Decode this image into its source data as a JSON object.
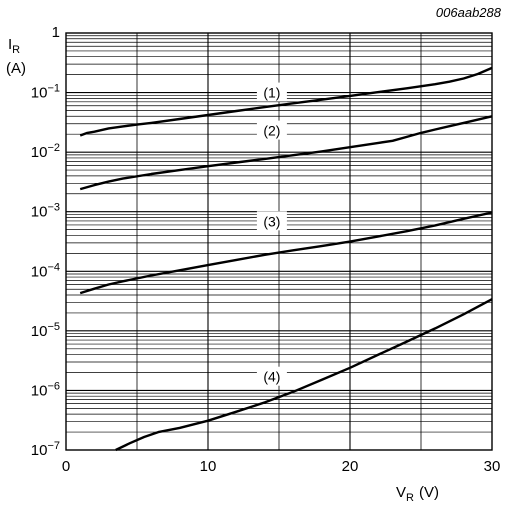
{
  "chart_data": {
    "type": "line",
    "figure_code": "006aab288",
    "ylabel": {
      "main": "I",
      "sub": "R",
      "unit": "(A)"
    },
    "xlabel": {
      "main": "V",
      "sub": "R",
      "unit": "(V)"
    },
    "y_scale": "log",
    "xlim": [
      0,
      30
    ],
    "ylim": [
      1e-07,
      1
    ],
    "x_ticks": [
      {
        "value": 0,
        "label": "0"
      },
      {
        "value": 10,
        "label": "10"
      },
      {
        "value": 20,
        "label": "20"
      },
      {
        "value": 30,
        "label": "30"
      }
    ],
    "y_ticks": [
      {
        "value": 1,
        "base": "1",
        "exp": ""
      },
      {
        "value": 0.1,
        "base": "10",
        "exp": "−1"
      },
      {
        "value": 0.01,
        "base": "10",
        "exp": "−2"
      },
      {
        "value": 0.001,
        "base": "10",
        "exp": "−3"
      },
      {
        "value": 0.0001,
        "base": "10",
        "exp": "−4"
      },
      {
        "value": 1e-05,
        "base": "10",
        "exp": "−5"
      },
      {
        "value": 1e-06,
        "base": "10",
        "exp": "−6"
      },
      {
        "value": 1e-07,
        "base": "10",
        "exp": "−7"
      }
    ],
    "grid": true,
    "series": [
      {
        "label": "(1)",
        "label_at": {
          "x": 14.5,
          "y": 0.1
        },
        "points": [
          [
            1,
            0.019
          ],
          [
            1.5,
            0.021
          ],
          [
            2,
            0.022
          ],
          [
            3,
            0.025
          ],
          [
            4,
            0.027
          ],
          [
            5,
            0.029
          ],
          [
            6,
            0.031
          ],
          [
            8,
            0.036
          ],
          [
            10,
            0.042
          ],
          [
            12,
            0.049
          ],
          [
            14,
            0.057
          ],
          [
            16,
            0.066
          ],
          [
            18,
            0.076
          ],
          [
            20,
            0.088
          ],
          [
            22,
            0.102
          ],
          [
            24,
            0.118
          ],
          [
            26,
            0.138
          ],
          [
            27,
            0.152
          ],
          [
            28,
            0.172
          ],
          [
            29,
            0.205
          ],
          [
            30,
            0.26
          ]
        ]
      },
      {
        "label": "(2)",
        "label_at": {
          "x": 14.5,
          "y": 0.023
        },
        "points": [
          [
            1,
            0.0024
          ],
          [
            2,
            0.0028
          ],
          [
            3,
            0.0032
          ],
          [
            4,
            0.0036
          ],
          [
            6,
            0.0043
          ],
          [
            8,
            0.005
          ],
          [
            10,
            0.0058
          ],
          [
            12,
            0.0067
          ],
          [
            14,
            0.0077
          ],
          [
            16,
            0.0089
          ],
          [
            18,
            0.0103
          ],
          [
            20,
            0.0121
          ],
          [
            22,
            0.0143
          ],
          [
            23,
            0.0155
          ],
          [
            24,
            0.018
          ],
          [
            25,
            0.021
          ],
          [
            26,
            0.024
          ],
          [
            28,
            0.031
          ],
          [
            30,
            0.04
          ]
        ]
      },
      {
        "label": "(3)",
        "label_at": {
          "x": 14.5,
          "y": 0.00069
        },
        "points": [
          [
            1,
            4.3e-05
          ],
          [
            2,
            5.1e-05
          ],
          [
            3,
            6e-05
          ],
          [
            4,
            6.8e-05
          ],
          [
            6,
            8.5e-05
          ],
          [
            8,
            0.000104
          ],
          [
            10,
            0.000127
          ],
          [
            12,
            0.000155
          ],
          [
            14,
            0.000189
          ],
          [
            16,
            0.000225
          ],
          [
            18,
            0.000265
          ],
          [
            20,
            0.000315
          ],
          [
            22,
            0.000385
          ],
          [
            24,
            0.00047
          ],
          [
            26,
            0.00059
          ],
          [
            28,
            0.00076
          ],
          [
            30,
            0.00097
          ]
        ]
      },
      {
        "label": "(4)",
        "label_at": {
          "x": 14.5,
          "y": 1.7e-06
        },
        "points": [
          [
            3.5,
            1e-07
          ],
          [
            4.5,
            1.3e-07
          ],
          [
            5.5,
            1.65e-07
          ],
          [
            6.5,
            2e-07
          ],
          [
            8,
            2.35e-07
          ],
          [
            10,
            3.1e-07
          ],
          [
            12,
            4.4e-07
          ],
          [
            14,
            6.3e-07
          ],
          [
            16,
            9.5e-07
          ],
          [
            18,
            1.5e-06
          ],
          [
            20,
            2.4e-06
          ],
          [
            22,
            4e-06
          ],
          [
            24,
            6.6e-06
          ],
          [
            26,
            1.1e-05
          ],
          [
            28,
            1.9e-05
          ],
          [
            30,
            3.4e-05
          ]
        ]
      }
    ]
  }
}
